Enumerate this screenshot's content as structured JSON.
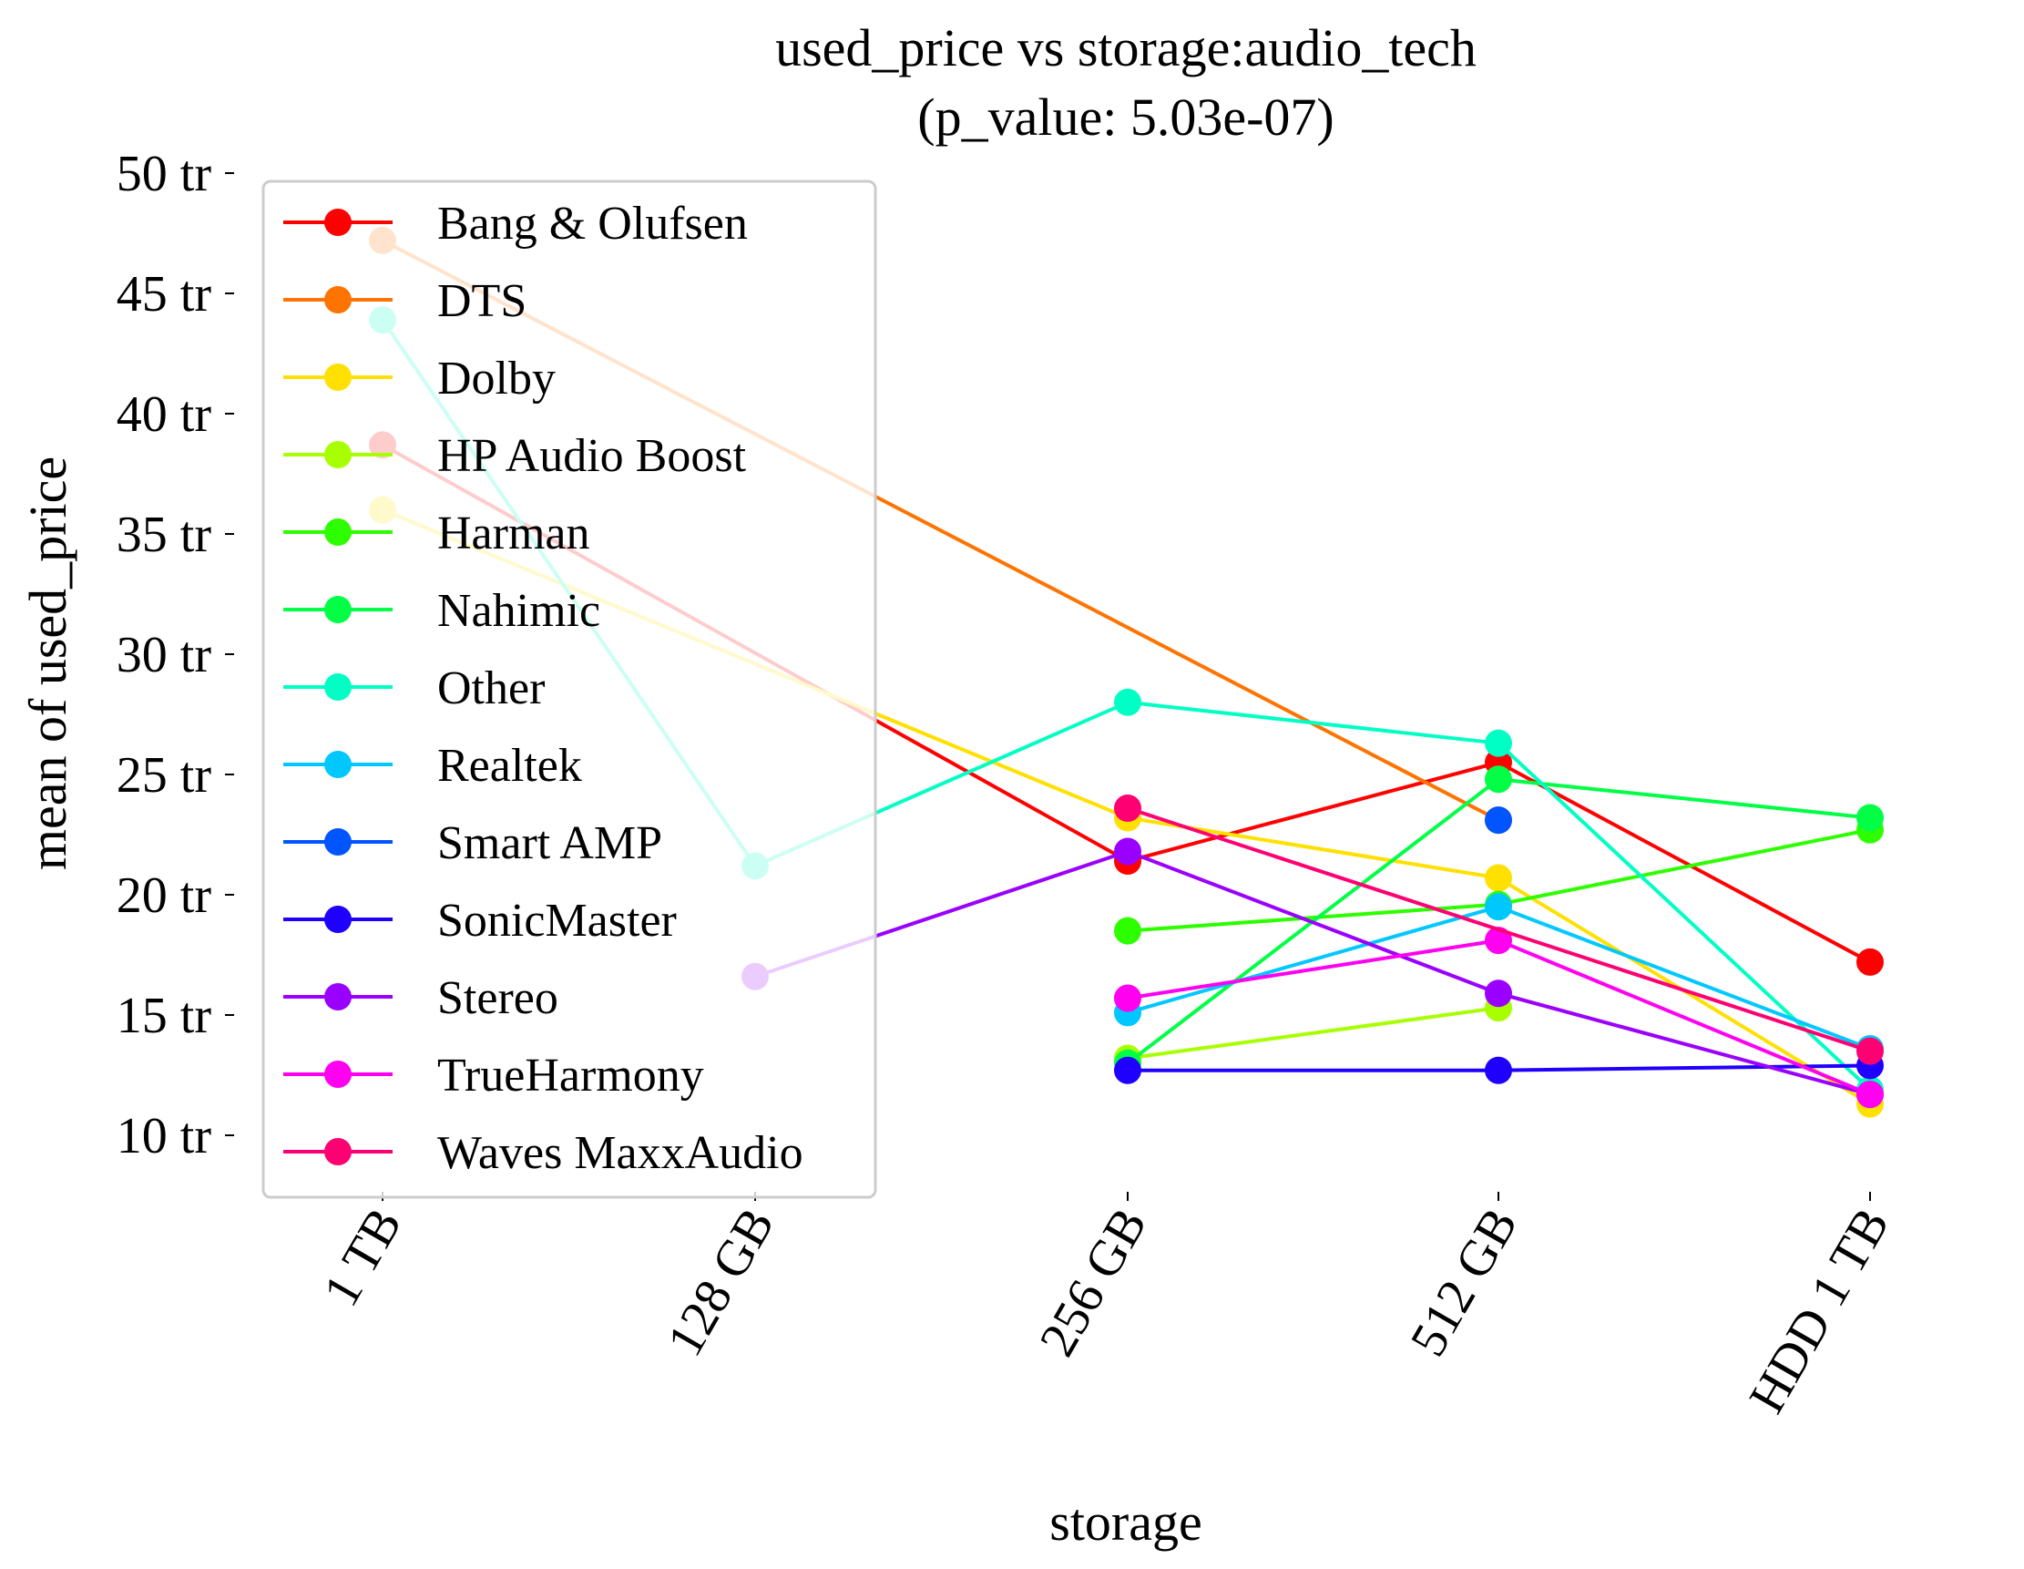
{
  "chart_data": {
    "type": "line",
    "title": "used_price vs storage:audio_tech",
    "subtitle": "(p_value: 5.03e-07)",
    "xlabel": "storage",
    "ylabel": "mean of used_price",
    "categories": [
      "1 TB",
      "128 GB",
      "256 GB",
      "512 GB",
      "HDD 1 TB"
    ],
    "ylim": [
      8,
      50
    ],
    "yticks": [
      10,
      15,
      20,
      25,
      30,
      35,
      40,
      45,
      50
    ],
    "ytick_labels": [
      "10 tr",
      "15 tr",
      "20 tr",
      "25 tr",
      "30 tr",
      "35 tr",
      "40 tr",
      "45 tr",
      "50 tr"
    ],
    "grid": false,
    "legend_position": "upper-left",
    "series": [
      {
        "name": "Bang & Olufsen",
        "color": "#ff0000",
        "values": [
          38.7,
          null,
          21.4,
          25.5,
          17.2
        ]
      },
      {
        "name": "DTS",
        "color": "#ff7300",
        "values": [
          47.2,
          null,
          null,
          23.1,
          null
        ]
      },
      {
        "name": "Dolby",
        "color": "#ffe000",
        "values": [
          36.0,
          null,
          23.2,
          20.7,
          11.3
        ]
      },
      {
        "name": "HP Audio Boost",
        "color": "#a8ff00",
        "values": [
          null,
          null,
          13.2,
          15.3,
          null
        ]
      },
      {
        "name": "Harman",
        "color": "#2eff00",
        "values": [
          null,
          null,
          18.5,
          19.6,
          22.7
        ]
      },
      {
        "name": "Nahimic",
        "color": "#00ff45",
        "values": [
          null,
          null,
          13.0,
          24.8,
          23.2
        ]
      },
      {
        "name": "Other",
        "color": "#00ffc4",
        "values": [
          43.9,
          21.2,
          28.0,
          26.3,
          11.9
        ]
      },
      {
        "name": "Realtek",
        "color": "#00c8ff",
        "values": [
          null,
          null,
          15.1,
          19.5,
          13.6
        ]
      },
      {
        "name": "Smart AMP",
        "color": "#0055ff",
        "values": [
          null,
          null,
          null,
          23.1,
          null
        ]
      },
      {
        "name": "SonicMaster",
        "color": "#1f00ff",
        "values": [
          null,
          null,
          12.7,
          12.7,
          12.9
        ]
      },
      {
        "name": "Stereo",
        "color": "#9a00ff",
        "values": [
          null,
          16.6,
          21.8,
          15.9,
          11.7
        ]
      },
      {
        "name": "TrueHarmony",
        "color": "#ff00f0",
        "values": [
          null,
          null,
          15.7,
          18.1,
          11.7
        ]
      },
      {
        "name": "Waves MaxxAudio",
        "color": "#ff0072",
        "values": [
          null,
          null,
          23.6,
          null,
          13.5
        ]
      }
    ]
  }
}
